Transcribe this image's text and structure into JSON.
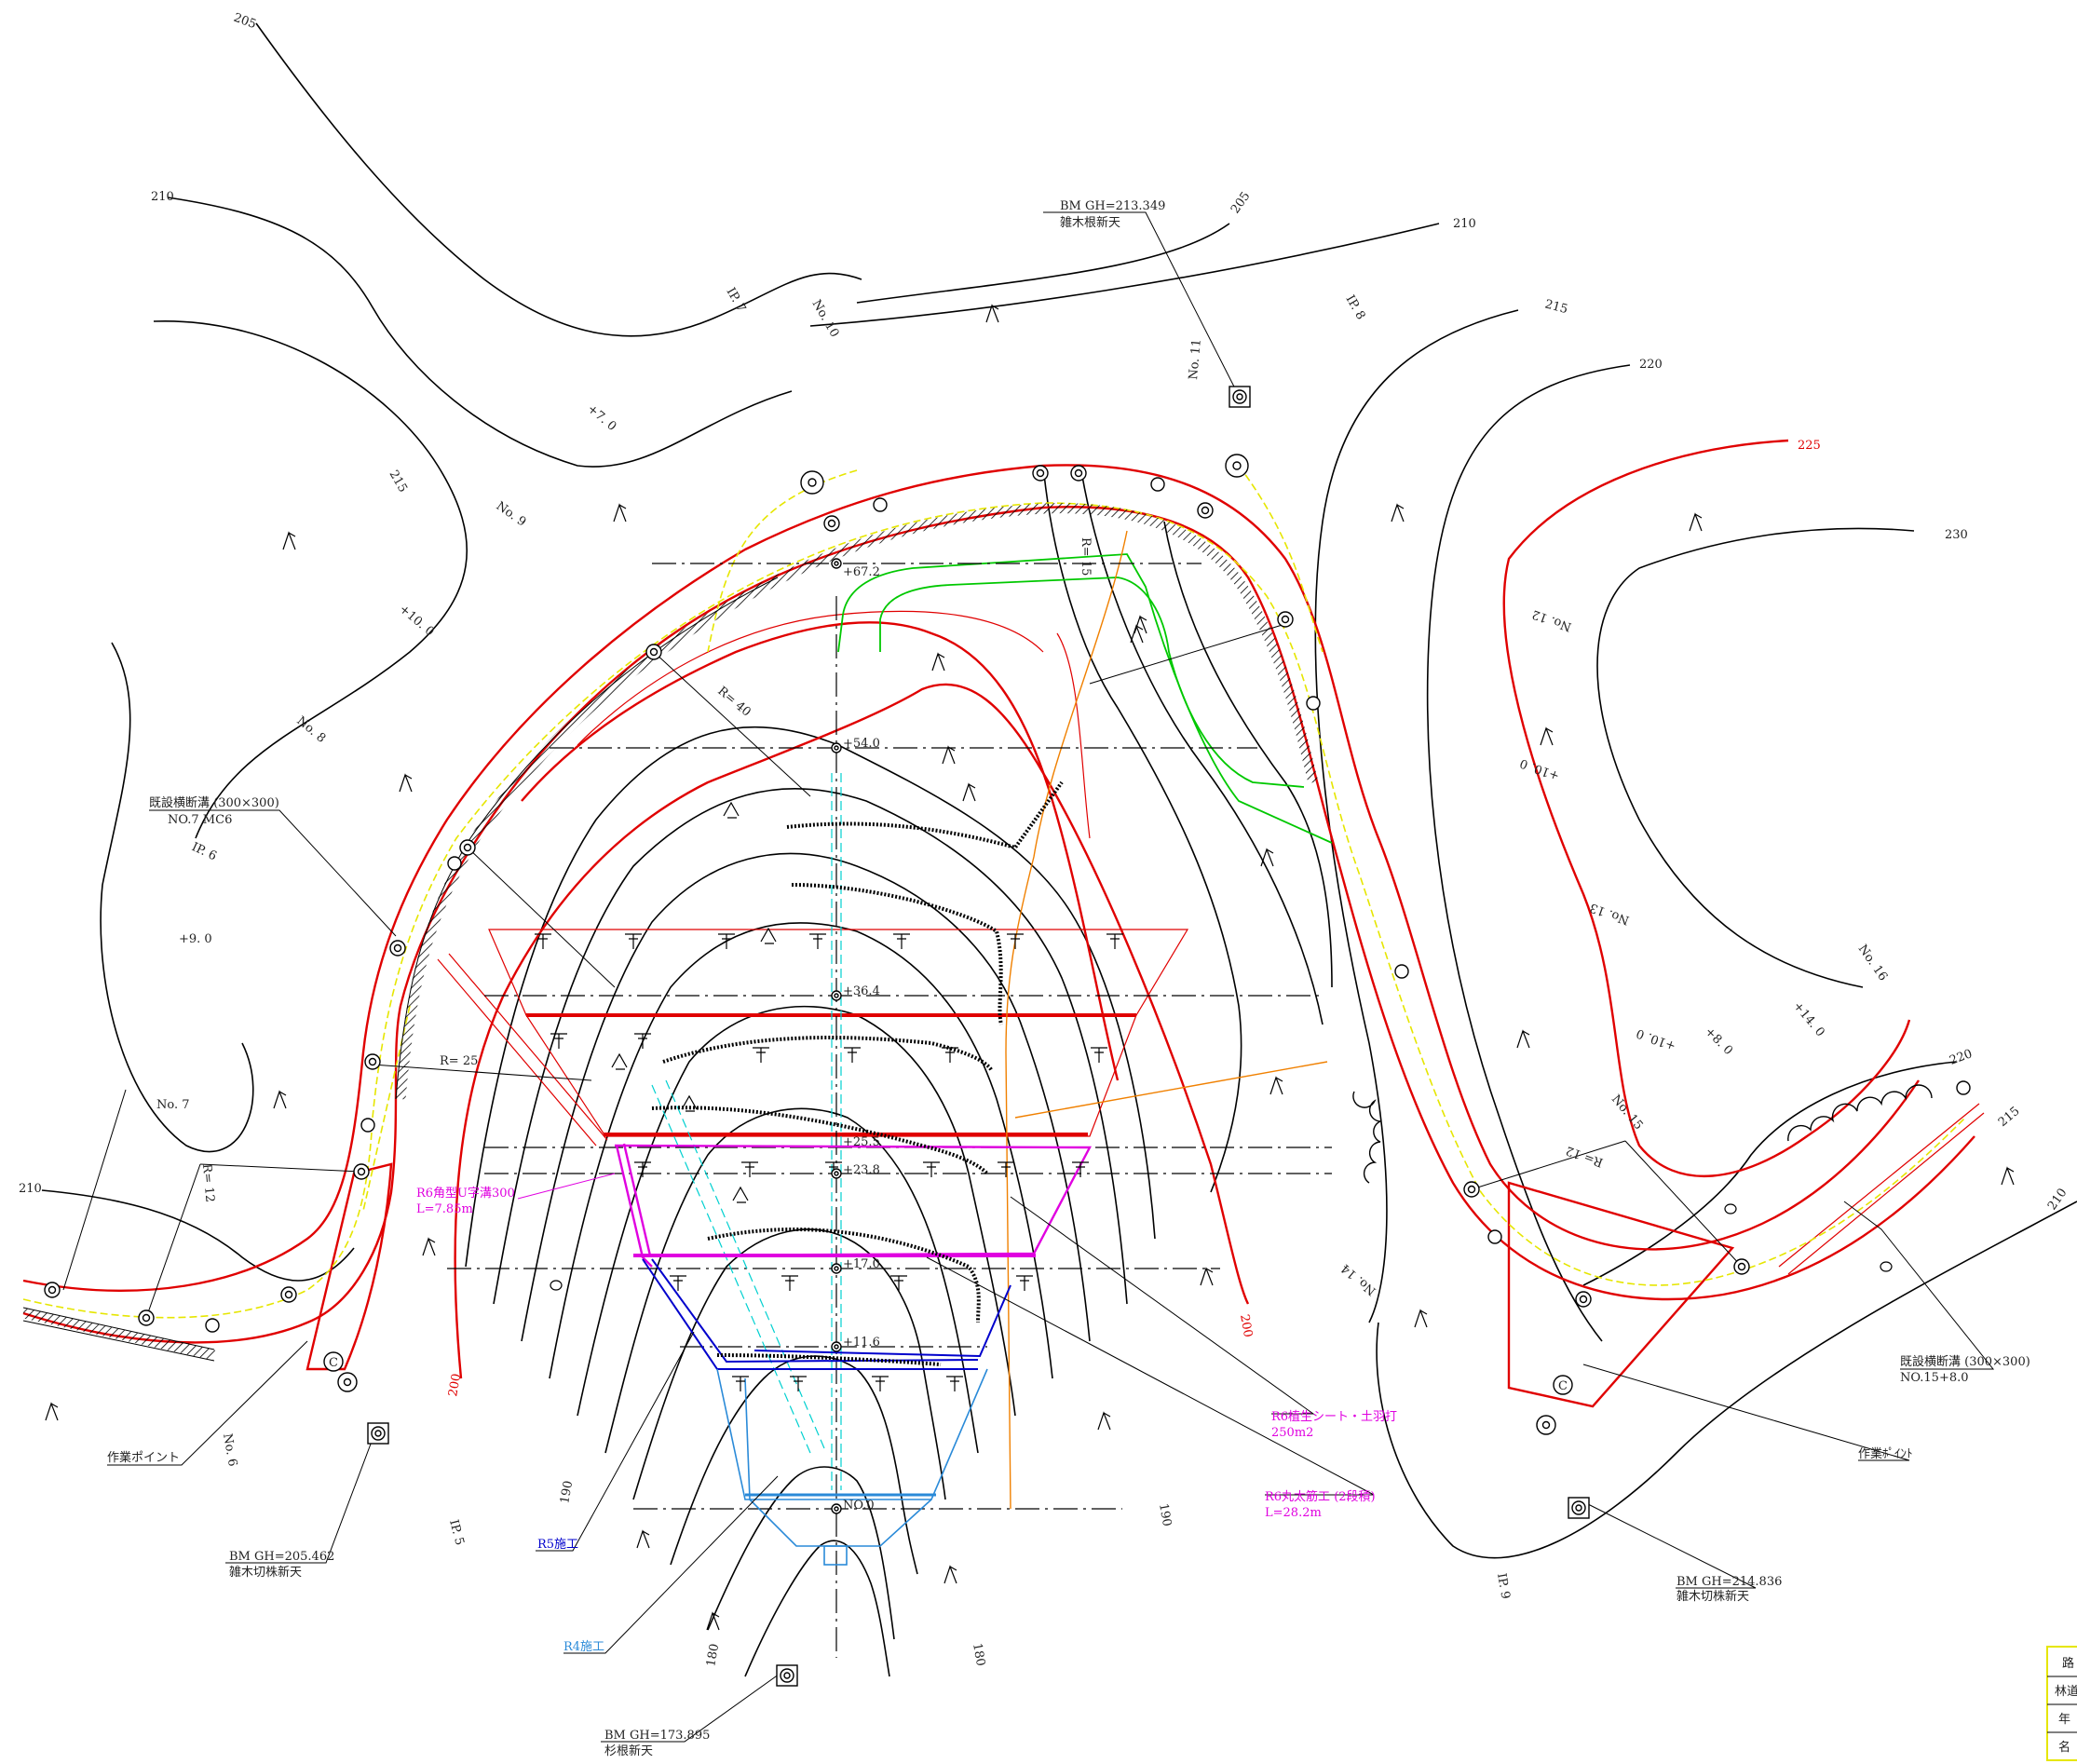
{
  "bench_marks": [
    {
      "label": "BM GH=213.349",
      "note": "雑木根新天"
    },
    {
      "label": "BM GH=205.462",
      "note": "雑木切株新天"
    },
    {
      "label": "BM GH=214.836",
      "note": "雑木切株新天"
    },
    {
      "label": "BM GH=173.895",
      "note": "杉根新天"
    }
  ],
  "existing_drains": [
    {
      "label": "既設横断溝 (300×300)",
      "sub": "NO.7 MC6"
    },
    {
      "label": "既設横断溝 (300×300)",
      "sub": "NO.15+8.0"
    }
  ],
  "work_points": [
    "作業ポイント",
    "作業ﾎﾟｲﾝﾄ"
  ],
  "works": {
    "r6_ditch": {
      "label": "R6角型U字溝300",
      "sub": "L=7.85m"
    },
    "r6_sheet": {
      "label": "R6植生シート・土羽打",
      "sub": "250m2"
    },
    "r6_log": {
      "label": "R6丸太筋工 (2段積)",
      "sub": "L=28.2m"
    },
    "r5": "R5施工",
    "r4": "R4施工"
  },
  "contours": {
    "c205a": "205",
    "c210a": "210",
    "c205b": "205",
    "c210b": "210",
    "c215a": "215",
    "c215b": "215",
    "c220a": "220",
    "c225": "225",
    "c230": "230",
    "c210c": "210",
    "c220b": "220",
    "c215c": "215",
    "c210d": "210",
    "c200a": "200",
    "c200b": "200",
    "c190a": "190",
    "c190b": "190",
    "c180a": "180",
    "c180b": "180"
  },
  "stations": {
    "no6": "No. 6",
    "no7": "No. 7",
    "no8": "No. 8",
    "no9": "No. 9",
    "no10": "No. 10",
    "no11": "No. 11",
    "no12": "No. 12",
    "no13": "No. 13",
    "no14": "No. 14",
    "no15": "No. 15",
    "no16": "No. 16",
    "p7": "+7. 0",
    "p10a": "+10. 0",
    "p9": "+9. 0",
    "p10b": "+10. 0",
    "p10c": "+10. 0",
    "p8": "+8. 0",
    "p14": "+14. 0",
    "ip5": "IP. 5",
    "ip6": "IP.  6",
    "ip7": "IP.  7",
    "ip8": "IP.  8",
    "ip9": "IP. 9"
  },
  "radii": {
    "r15": "R= 15",
    "r40": "R= 40",
    "r25": "R= 25",
    "r12a": "R= 12",
    "r12b": "R= 12"
  },
  "chainages": [
    "+67.2",
    "+54.0",
    "+36.4",
    "+25.5",
    "+23.8",
    "+17.0",
    "+11.6",
    "NO.0"
  ],
  "circle_labels": [
    "C",
    "C"
  ],
  "title_block": [
    "路",
    "林道",
    "年",
    "名"
  ],
  "colors": {
    "existing_road": "#e00000",
    "centerline": "#e6e600",
    "contour": "#000000",
    "r6": "#e000e0",
    "r5": "#0000cc",
    "r4": "#2a8ad8",
    "vegetation": "#00c800",
    "slope_line": "#f08000"
  }
}
